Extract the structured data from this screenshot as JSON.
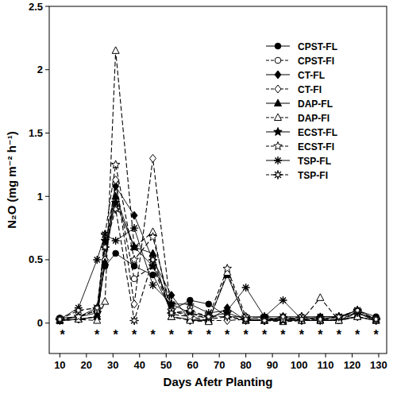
{
  "chart_data": {
    "type": "line",
    "x_label": "Days Afetr Planting",
    "y_label": "N₂O (mg m⁻² h⁻¹)",
    "x": [
      10,
      17,
      24,
      27,
      31,
      38,
      45,
      52,
      59,
      66,
      73,
      80,
      87,
      94,
      101,
      108,
      115,
      122,
      129
    ],
    "xlim": [
      6,
      133
    ],
    "xticks": [
      10,
      20,
      30,
      40,
      50,
      60,
      70,
      80,
      90,
      100,
      110,
      120,
      130
    ],
    "ylim": [
      -0.24,
      2.5
    ],
    "yticks": [
      0,
      0.5,
      1,
      1.5,
      2,
      2.5
    ],
    "grid": false,
    "legend": "upper right",
    "series": [
      {
        "name": "CPST-FL",
        "color": "#000000",
        "marker": "circle",
        "line_style": "solid",
        "values": [
          0.04,
          0.05,
          0.12,
          0.45,
          0.55,
          0.45,
          0.38,
          0.1,
          0.18,
          0.15,
          0.05,
          0.05,
          0.05,
          0.05,
          0.05,
          0.05,
          0.05,
          0.1,
          0.05
        ]
      },
      {
        "name": "CPST-FI",
        "color": "#000000",
        "marker": "circle-open",
        "line_style": "dashed",
        "values": [
          0.03,
          0.05,
          0.1,
          0.6,
          1.1,
          0.35,
          0.45,
          0.08,
          0.08,
          0.03,
          0.05,
          0.02,
          0.03,
          0.02,
          0.03,
          0.02,
          0.02,
          0.08,
          0.02
        ]
      },
      {
        "name": "CT-FL",
        "color": "#000000",
        "marker": "diamond",
        "line_style": "solid",
        "values": [
          0.02,
          0.03,
          0.05,
          0.5,
          1.08,
          0.85,
          0.5,
          0.22,
          0.02,
          0.02,
          0.12,
          0.02,
          0.02,
          0.05,
          0.02,
          0.02,
          0.03,
          0.05,
          0.02
        ]
      },
      {
        "name": "CT-FI",
        "color": "#000000",
        "marker": "diamond-open",
        "line_style": "dashed",
        "values": [
          0.02,
          0.03,
          0.05,
          0.5,
          1.13,
          0.15,
          1.3,
          0.07,
          0.05,
          0.02,
          0.02,
          0.03,
          0.02,
          0.03,
          0.02,
          0.02,
          0.03,
          0.08,
          0.02
        ]
      },
      {
        "name": "DAP-FL",
        "color": "#000000",
        "marker": "triangle",
        "line_style": "solid",
        "values": [
          0.02,
          0.03,
          0.05,
          0.48,
          1.0,
          0.6,
          0.55,
          0.05,
          0.03,
          0.02,
          0.38,
          0.02,
          0.02,
          0.02,
          0.02,
          0.02,
          0.02,
          0.05,
          0.02
        ]
      },
      {
        "name": "DAP-FI",
        "color": "#000000",
        "marker": "triangle-open",
        "line_style": "dashed",
        "values": [
          0.02,
          0.03,
          0.02,
          0.17,
          2.15,
          0.6,
          0.72,
          0.05,
          0.02,
          0.01,
          0.4,
          0.02,
          0.02,
          0.01,
          0.02,
          0.2,
          0.02,
          0.05,
          0.02
        ]
      },
      {
        "name": "ECST-FL",
        "color": "#000000",
        "marker": "star",
        "line_style": "solid",
        "values": [
          0.02,
          0.05,
          0.08,
          0.65,
          0.95,
          0.6,
          0.45,
          0.15,
          0.08,
          0.05,
          0.08,
          0.03,
          0.05,
          0.02,
          0.05,
          0.03,
          0.05,
          0.1,
          0.03
        ]
      },
      {
        "name": "ECST-FI",
        "color": "#000000",
        "marker": "star-open",
        "line_style": "dashed",
        "values": [
          0.03,
          0.05,
          0.1,
          0.7,
          1.25,
          0.5,
          0.68,
          0.1,
          0.05,
          0.05,
          0.43,
          0.05,
          0.03,
          0.03,
          0.05,
          0.02,
          0.05,
          0.08,
          0.03
        ]
      },
      {
        "name": "TSP-FL",
        "color": "#000000",
        "marker": "asterisk",
        "line_style": "solid",
        "values": [
          0.03,
          0.12,
          0.5,
          0.7,
          0.65,
          0.75,
          0.3,
          0.15,
          0.15,
          0.08,
          0.1,
          0.28,
          0.05,
          0.18,
          0.03,
          0.05,
          0.05,
          0.08,
          0.03
        ]
      },
      {
        "name": "TSP-FI",
        "color": "#000000",
        "marker": "asterisk-open",
        "line_style": "dashed",
        "values": [
          0.03,
          0.1,
          0.12,
          0.6,
          0.9,
          0.02,
          0.5,
          0.08,
          0.1,
          0.05,
          0.05,
          0.03,
          0.02,
          0.05,
          0.03,
          0.03,
          0.05,
          0.1,
          0.03
        ]
      }
    ],
    "annotations": [
      {
        "text": "*",
        "x": 11,
        "y": -0.08
      },
      {
        "text": "*",
        "x": 24,
        "y": -0.08
      },
      {
        "text": "*",
        "x": 31,
        "y": -0.08
      },
      {
        "text": "*",
        "x": 38,
        "y": -0.08
      },
      {
        "text": "*",
        "x": 45,
        "y": -0.08
      },
      {
        "text": "*",
        "x": 52,
        "y": -0.08
      },
      {
        "text": "*",
        "x": 59,
        "y": -0.08
      },
      {
        "text": "*",
        "x": 66,
        "y": -0.08
      },
      {
        "text": "*",
        "x": 73,
        "y": -0.08
      },
      {
        "text": "*",
        "x": 80,
        "y": -0.08
      },
      {
        "text": "*",
        "x": 87,
        "y": -0.08
      },
      {
        "text": "*",
        "x": 94,
        "y": -0.08
      },
      {
        "text": "*",
        "x": 101,
        "y": -0.08
      },
      {
        "text": "*",
        "x": 108,
        "y": -0.08
      },
      {
        "text": "*",
        "x": 115,
        "y": -0.08
      },
      {
        "text": "*",
        "x": 122,
        "y": -0.08
      },
      {
        "text": "*",
        "x": 129,
        "y": -0.08
      }
    ]
  }
}
